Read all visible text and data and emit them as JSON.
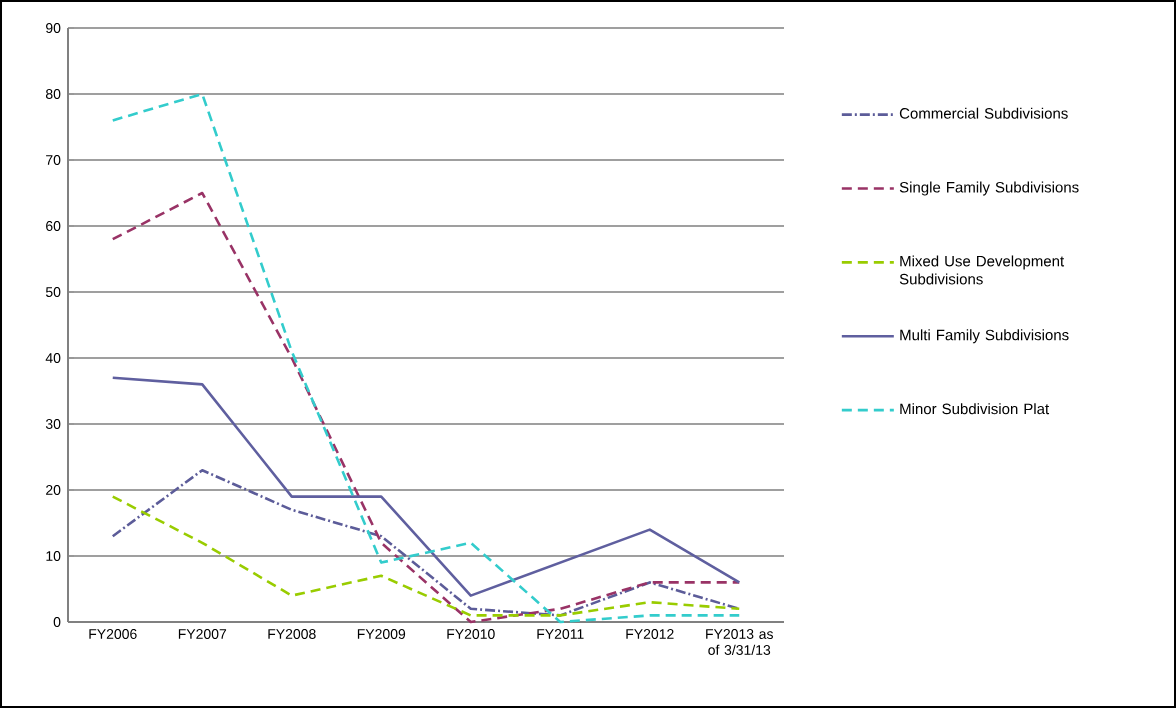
{
  "chart_data": {
    "type": "line",
    "categories": [
      "FY2006",
      "FY2007",
      "FY2008",
      "FY2009",
      "FY2010",
      "FY2011",
      "FY2012",
      "FY2013 as of 3/31/13"
    ],
    "series": [
      {
        "name": "Commercial Subdivisions",
        "color": "#5c5c99",
        "line_style": "dashdot",
        "values": [
          13,
          23,
          17,
          13,
          2,
          1,
          6,
          2
        ]
      },
      {
        "name": "Single Family Subdivisions",
        "color": "#993366",
        "line_style": "dashed",
        "values": [
          58,
          65,
          40,
          12,
          0,
          2,
          6,
          6
        ]
      },
      {
        "name": "Mixed Use Development Subdivisions",
        "color": "#99cc00",
        "line_style": "dashed",
        "values": [
          19,
          12,
          4,
          7,
          1,
          1,
          3,
          2
        ]
      },
      {
        "name": "Multi Family Subdivisions",
        "color": "#5f5f9f",
        "line_style": "solid",
        "values": [
          37,
          36,
          19,
          19,
          4,
          9,
          14,
          6
        ]
      },
      {
        "name": "Minor Subdivision Plat",
        "color": "#33cccc",
        "line_style": "dashed",
        "values": [
          76,
          80,
          41,
          9,
          12,
          0,
          1,
          1
        ]
      }
    ],
    "ylim": [
      0,
      90
    ],
    "yticks": [
      0,
      10,
      20,
      30,
      40,
      50,
      60,
      70,
      80,
      90
    ],
    "grid": "y",
    "legend": "right",
    "marker": "none"
  }
}
